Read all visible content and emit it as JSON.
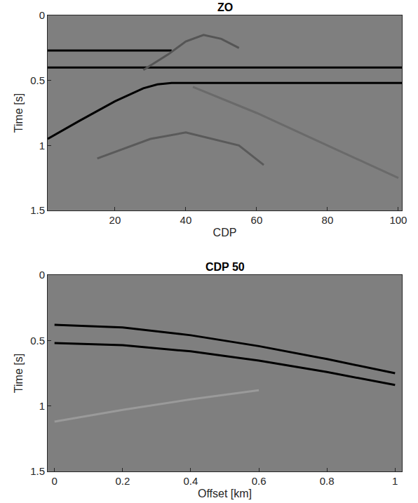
{
  "chart_data": [
    {
      "type": "line",
      "title": "ZO",
      "x_label": "CDP",
      "y_label": "Time [s]",
      "xlim": [
        1,
        101
      ],
      "xticks": [
        20,
        40,
        60,
        80,
        100
      ],
      "ylim": [
        1.5,
        0
      ],
      "yticks": [
        0,
        0.5,
        1,
        1.5
      ],
      "grid": false,
      "color": "#7f7f7f",
      "series": [
        {
          "color": "#000000",
          "x": [
            1,
            36
          ],
          "values": [
            0.27,
            0.27
          ]
        },
        {
          "color": "#000000",
          "x": [
            1,
            101
          ],
          "values": [
            0.4,
            0.4
          ]
        },
        {
          "color": "#000000",
          "x": [
            1,
            10,
            20,
            28,
            32,
            36,
            101
          ],
          "values": [
            0.95,
            0.81,
            0.66,
            0.56,
            0.53,
            0.52,
            0.52
          ]
        },
        {
          "color": "#555555",
          "x": [
            28,
            35,
            40,
            45,
            50,
            55
          ],
          "values": [
            0.42,
            0.3,
            0.2,
            0.15,
            0.18,
            0.25
          ]
        },
        {
          "color": "#6a6a6a",
          "x": [
            42,
            60,
            80,
            100
          ],
          "values": [
            0.55,
            0.75,
            1.0,
            1.25
          ]
        },
        {
          "color": "#5a5a5a",
          "x": [
            15,
            30,
            40,
            55,
            62
          ],
          "values": [
            1.1,
            0.95,
            0.9,
            1.0,
            1.15
          ]
        }
      ]
    },
    {
      "type": "line",
      "title": "CDP 50",
      "x_label": "Offset [km]",
      "y_label": "Time [s]",
      "xlim": [
        -0.02,
        1.02
      ],
      "xticks": [
        0,
        0.2,
        0.4,
        0.6,
        0.8,
        1
      ],
      "ylim": [
        1.5,
        0
      ],
      "yticks": [
        0,
        0.5,
        1,
        1.5
      ],
      "grid": false,
      "color": "#7f7f7f",
      "series": [
        {
          "color": "#000000",
          "x": [
            0,
            0.2,
            0.4,
            0.6,
            0.8,
            1.0
          ],
          "values": [
            0.38,
            0.401,
            0.46,
            0.543,
            0.642,
            0.75
          ]
        },
        {
          "color": "#000000",
          "x": [
            0,
            0.2,
            0.4,
            0.6,
            0.8,
            1.0
          ],
          "values": [
            0.52,
            0.536,
            0.583,
            0.654,
            0.741,
            0.84
          ]
        },
        {
          "color": "#9a9a9a",
          "x": [
            0,
            0.2,
            0.4,
            0.6
          ],
          "values": [
            1.12,
            1.03,
            0.95,
            0.88
          ]
        }
      ]
    }
  ]
}
